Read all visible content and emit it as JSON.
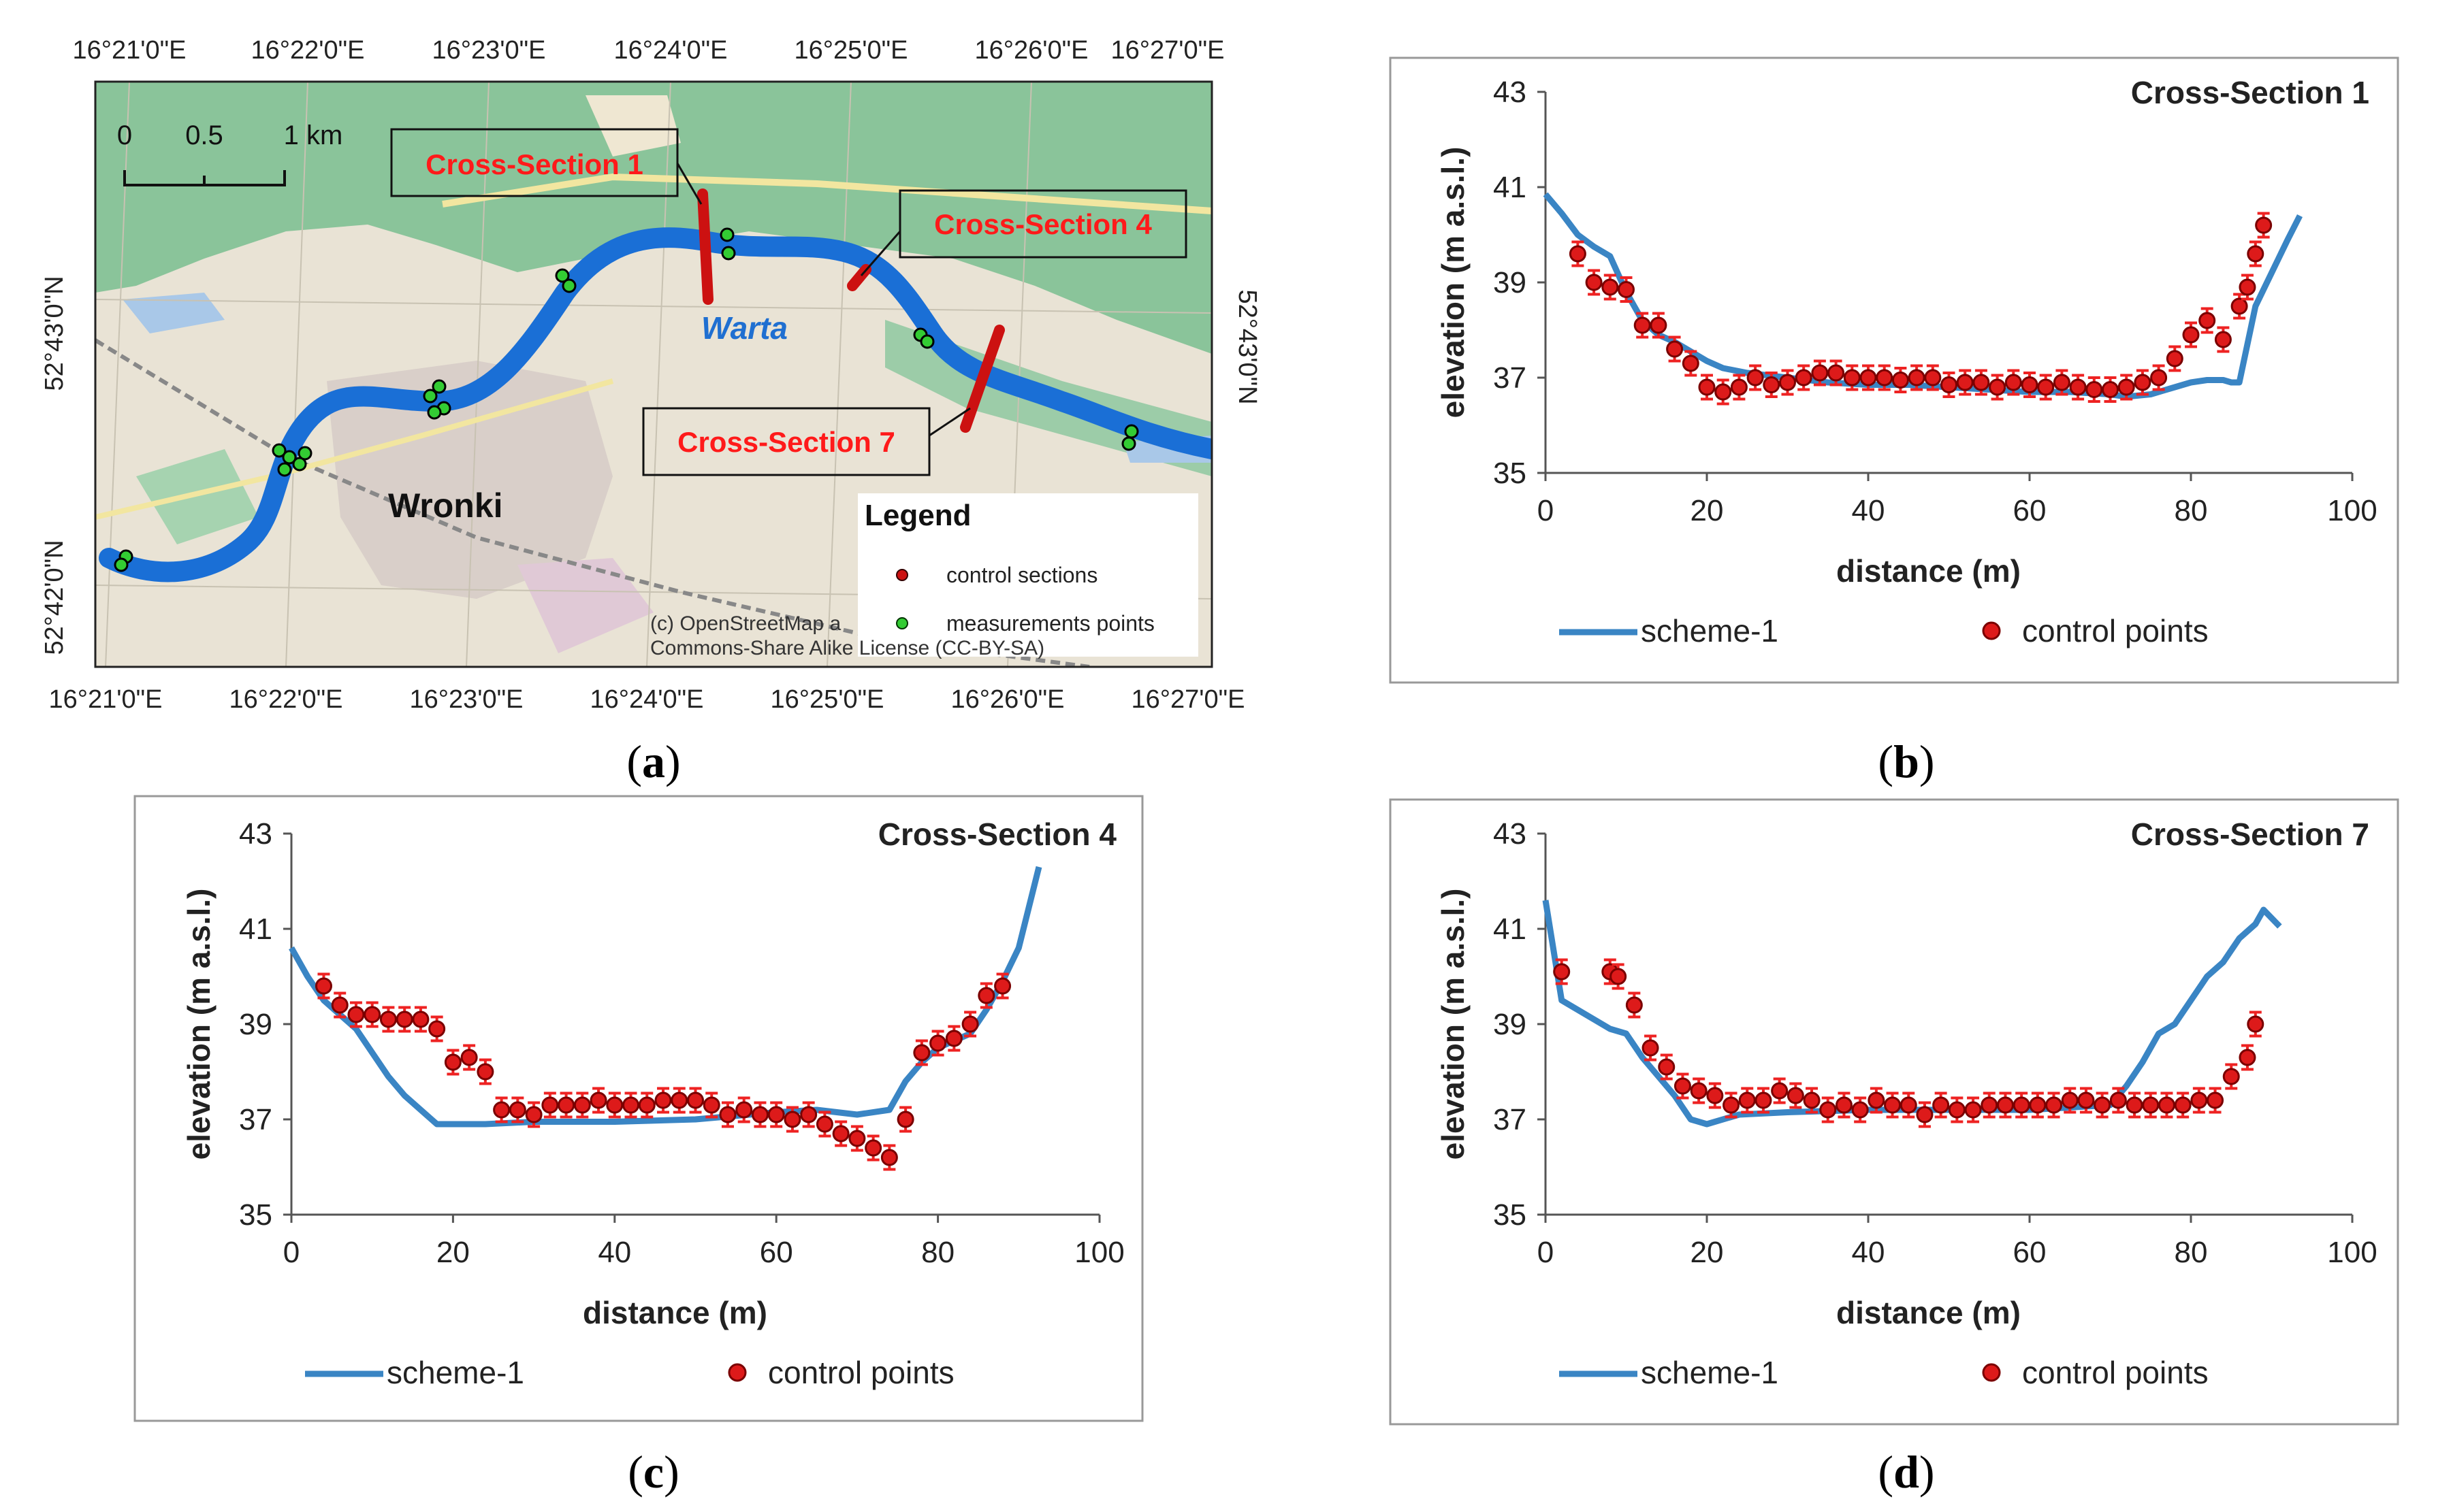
{
  "figure_labels": {
    "a": "a",
    "b": "b",
    "c": "c",
    "d": "d"
  },
  "map": {
    "top_lon_labels": [
      "16°21'0\"E",
      "16°22'0\"E",
      "16°23'0\"E",
      "16°24'0\"E",
      "16°25'0\"E",
      "16°26'0\"E",
      "16°27'0\"E"
    ],
    "bottom_lon_labels": [
      "16°21'0\"E",
      "16°22'0\"E",
      "16°23'0\"E",
      "16°24'0\"E",
      "16°25'0\"E",
      "16°26'0\"E",
      "16°27'0\"E"
    ],
    "left_lat_labels": [
      "52°43'0\"N",
      "52°42'0\"N"
    ],
    "right_lat_labels": [
      "52°43'0\"N"
    ],
    "scale": {
      "zero": "0",
      "half": "0.5",
      "one": "1 km"
    },
    "river_name": "Warta",
    "city_name": "Wronki",
    "cs_labels": {
      "cs1": "Cross-Section 1",
      "cs4": "Cross-Section 4",
      "cs7": "Cross-Section 7"
    },
    "legend": {
      "title": "Legend",
      "control": "control sections",
      "measure": "measurements points"
    },
    "copyright_1": "(c) OpenStreetMap a",
    "copyright_2": "Commons-Share Alike License (CC-BY-SA)",
    "colors": {
      "river": "#1a6fd6",
      "control": "#cc1111",
      "measure": "#33cc33",
      "land": "#e9e3d5",
      "forest": "#8ac49a",
      "cs_text": "#ff1a1a"
    }
  },
  "legend": {
    "line": "scheme-1",
    "points": "control points"
  },
  "colors": {
    "line": "#3a85c4",
    "point": "#dd1a1a",
    "point_edge": "#7a0000",
    "error": "#ee2222"
  },
  "chart_data": [
    {
      "id": "b",
      "type": "line+scatter",
      "title": "Cross-Section 1",
      "xlabel": "distance (m)",
      "ylabel": "elevation (m a.s.l.)",
      "xlim": [
        0,
        100
      ],
      "ylim": [
        35,
        43
      ],
      "xticks": [
        0,
        20,
        40,
        60,
        80,
        100
      ],
      "yticks": [
        35,
        37,
        39,
        41,
        43
      ],
      "error": 0.25,
      "line": {
        "name": "scheme-1",
        "x": [
          0,
          2,
          4,
          6,
          8,
          10,
          12,
          14,
          16,
          18,
          20,
          22,
          25,
          30,
          35,
          40,
          45,
          50,
          55,
          60,
          65,
          70,
          72,
          75,
          78,
          80,
          82,
          84,
          85,
          86,
          88,
          90,
          92,
          93.5
        ],
        "y": [
          40.85,
          40.45,
          40.0,
          39.75,
          39.55,
          38.8,
          38.2,
          37.9,
          37.75,
          37.55,
          37.35,
          37.2,
          37.1,
          37.0,
          36.9,
          36.85,
          36.85,
          36.8,
          36.75,
          36.7,
          36.7,
          36.65,
          36.6,
          36.65,
          36.8,
          36.9,
          36.95,
          36.95,
          36.9,
          36.9,
          38.5,
          39.2,
          39.9,
          40.4
        ]
      },
      "points": {
        "name": "control points",
        "x": [
          4,
          6,
          8,
          10,
          12,
          14,
          16,
          18,
          20,
          22,
          24,
          26,
          28,
          30,
          32,
          34,
          36,
          38,
          40,
          42,
          44,
          46,
          48,
          50,
          52,
          54,
          56,
          58,
          60,
          62,
          64,
          66,
          68,
          70,
          72,
          74,
          76,
          78,
          80,
          82,
          84,
          86,
          87,
          88,
          89
        ],
        "y": [
          39.6,
          39.0,
          38.9,
          38.85,
          38.1,
          38.1,
          37.6,
          37.3,
          36.8,
          36.7,
          36.8,
          37.0,
          36.85,
          36.9,
          37.0,
          37.1,
          37.1,
          37.0,
          37.0,
          37.0,
          36.95,
          37.0,
          37.0,
          36.85,
          36.9,
          36.9,
          36.8,
          36.9,
          36.85,
          36.8,
          36.9,
          36.8,
          36.75,
          36.75,
          36.8,
          36.9,
          37.0,
          37.4,
          37.9,
          38.2,
          37.8,
          38.5,
          38.9,
          39.6,
          40.2
        ]
      }
    },
    {
      "id": "c",
      "type": "line+scatter",
      "title": "Cross-Section 4",
      "xlabel": "distance (m)",
      "ylabel": "elevation (m a.s.l.)",
      "xlim": [
        0,
        100
      ],
      "ylim": [
        35,
        43
      ],
      "xticks": [
        0,
        20,
        40,
        60,
        80,
        100
      ],
      "yticks": [
        35,
        37,
        39,
        41,
        43
      ],
      "error": 0.25,
      "line": {
        "name": "scheme-1",
        "x": [
          0,
          2,
          4,
          6,
          8,
          10,
          12,
          14,
          16,
          18,
          20,
          24,
          30,
          40,
          50,
          60,
          65,
          70,
          74,
          76,
          78,
          80,
          84,
          86,
          88,
          90,
          92.5
        ],
        "y": [
          40.6,
          40.0,
          39.5,
          39.2,
          38.9,
          38.4,
          37.9,
          37.5,
          37.2,
          36.9,
          36.9,
          36.9,
          36.95,
          36.95,
          37.0,
          37.15,
          37.2,
          37.1,
          37.2,
          37.8,
          38.2,
          38.5,
          38.8,
          39.3,
          39.9,
          40.6,
          42.3
        ]
      },
      "points": {
        "name": "control points",
        "x": [
          4,
          6,
          8,
          10,
          12,
          14,
          16,
          18,
          20,
          22,
          24,
          26,
          28,
          30,
          32,
          34,
          36,
          38,
          40,
          42,
          44,
          46,
          48,
          50,
          52,
          54,
          56,
          58,
          60,
          62,
          64,
          66,
          68,
          70,
          72,
          74,
          76,
          78,
          80,
          82,
          84,
          86,
          88
        ],
        "y": [
          39.8,
          39.4,
          39.2,
          39.2,
          39.1,
          39.1,
          39.1,
          38.9,
          38.2,
          38.3,
          38.0,
          37.2,
          37.2,
          37.1,
          37.3,
          37.3,
          37.3,
          37.4,
          37.3,
          37.3,
          37.3,
          37.4,
          37.4,
          37.4,
          37.3,
          37.1,
          37.2,
          37.1,
          37.1,
          37.0,
          37.1,
          36.9,
          36.7,
          36.6,
          36.4,
          36.2,
          37.0,
          38.4,
          38.6,
          38.7,
          39.0,
          39.6,
          39.8
        ]
      }
    },
    {
      "id": "d",
      "type": "line+scatter",
      "title": "Cross-Section 7",
      "xlabel": "distance (m)",
      "ylabel": "elevation (m a.s.l.)",
      "xlim": [
        0,
        100
      ],
      "ylim": [
        35,
        43
      ],
      "xticks": [
        0,
        20,
        40,
        60,
        80,
        100
      ],
      "yticks": [
        35,
        37,
        39,
        41,
        43
      ],
      "error": 0.25,
      "line": {
        "name": "scheme-1",
        "x": [
          0,
          2,
          4,
          6,
          8,
          10,
          12,
          14,
          16,
          18,
          20,
          24,
          30,
          40,
          50,
          60,
          70,
          72,
          74,
          76,
          78,
          80,
          82,
          84,
          86,
          88,
          89,
          91
        ],
        "y": [
          41.6,
          39.5,
          39.3,
          39.1,
          38.9,
          38.8,
          38.3,
          37.9,
          37.5,
          37.0,
          36.9,
          37.1,
          37.15,
          37.2,
          37.2,
          37.2,
          37.3,
          37.7,
          38.2,
          38.8,
          39.0,
          39.5,
          40.0,
          40.3,
          40.8,
          41.1,
          41.4,
          41.05
        ]
      },
      "points": {
        "name": "control points",
        "x": [
          2,
          8,
          9,
          11,
          13,
          15,
          17,
          19,
          21,
          23,
          25,
          27,
          29,
          31,
          33,
          35,
          37,
          39,
          41,
          43,
          45,
          47,
          49,
          51,
          53,
          55,
          57,
          59,
          61,
          63,
          65,
          67,
          69,
          71,
          73,
          75,
          77,
          79,
          81,
          83,
          85,
          87,
          88
        ],
        "y": [
          40.1,
          40.1,
          40.0,
          39.4,
          38.5,
          38.1,
          37.7,
          37.6,
          37.5,
          37.3,
          37.4,
          37.4,
          37.6,
          37.5,
          37.4,
          37.2,
          37.3,
          37.2,
          37.4,
          37.3,
          37.3,
          37.1,
          37.3,
          37.2,
          37.2,
          37.3,
          37.3,
          37.3,
          37.3,
          37.3,
          37.4,
          37.4,
          37.3,
          37.4,
          37.3,
          37.3,
          37.3,
          37.3,
          37.4,
          37.4,
          37.9,
          38.3,
          39.0
        ]
      }
    }
  ]
}
